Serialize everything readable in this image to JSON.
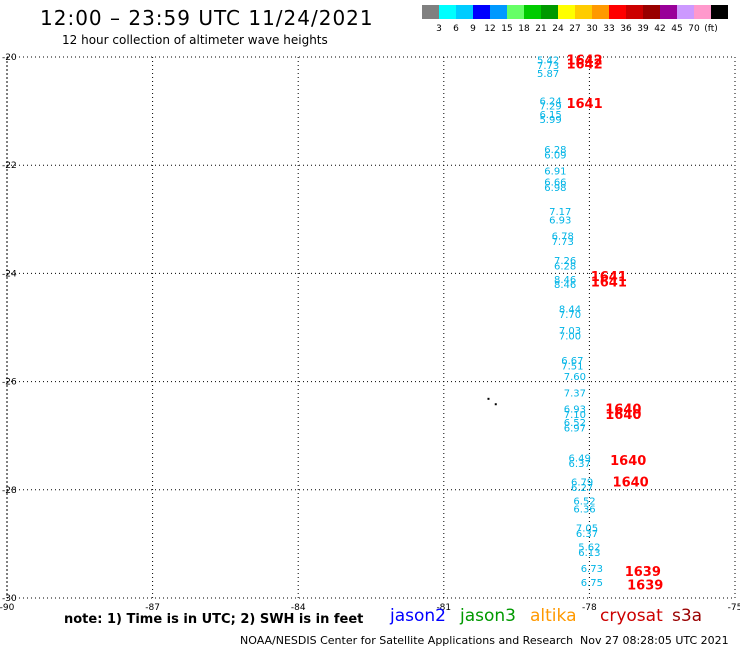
{
  "header": {
    "title": "12:00 – 23:59 UTC 11/24/2021",
    "subtitle": "12 hour collection of altimeter wave heights"
  },
  "colorbar": {
    "colors": [
      "#808080",
      "#00ffff",
      "#00ccff",
      "#0000ff",
      "#0099ff",
      "#66ff66",
      "#00cc00",
      "#009900",
      "#ffff00",
      "#ffcc00",
      "#ff9900",
      "#ff0000",
      "#cc0000",
      "#990000",
      "#990099",
      "#cc99ff",
      "#ff99cc",
      "#000000"
    ],
    "labels": [
      "3",
      "6",
      "9",
      "12",
      "15",
      "18",
      "21",
      "24",
      "27",
      "30",
      "33",
      "36",
      "39",
      "42",
      "45",
      "70",
      "(ft)"
    ]
  },
  "chart_data": {
    "type": "scatter",
    "xlim": [
      -90,
      -75
    ],
    "ylim": [
      -30,
      -20
    ],
    "x_ticks": [
      -90,
      -87,
      -84,
      -81,
      -78,
      -75
    ],
    "y_ticks": [
      -20,
      -22,
      -24,
      -26,
      -28,
      -30
    ],
    "grid": true,
    "swh_labels": [
      {
        "lon": -78.85,
        "lat": -20.05,
        "text": "5.42"
      },
      {
        "lon": -78.85,
        "lat": -20.15,
        "text": "7.73"
      },
      {
        "lon": -78.85,
        "lat": -20.3,
        "text": "5.87"
      },
      {
        "lon": -78.8,
        "lat": -20.8,
        "text": "6.24"
      },
      {
        "lon": -78.8,
        "lat": -20.9,
        "text": "7.29"
      },
      {
        "lon": -78.8,
        "lat": -21.05,
        "text": "6.15"
      },
      {
        "lon": -78.8,
        "lat": -21.15,
        "text": "5.99"
      },
      {
        "lon": -78.7,
        "lat": -21.7,
        "text": "6.28"
      },
      {
        "lon": -78.7,
        "lat": -21.8,
        "text": "6.09"
      },
      {
        "lon": -78.7,
        "lat": -22.1,
        "text": "6.91"
      },
      {
        "lon": -78.7,
        "lat": -22.3,
        "text": "6.66"
      },
      {
        "lon": -78.7,
        "lat": -22.4,
        "text": "6.98"
      },
      {
        "lon": -78.6,
        "lat": -22.85,
        "text": "7.17"
      },
      {
        "lon": -78.6,
        "lat": -23.0,
        "text": "6.93"
      },
      {
        "lon": -78.55,
        "lat": -23.3,
        "text": "6.78"
      },
      {
        "lon": -78.55,
        "lat": -23.4,
        "text": "7.73"
      },
      {
        "lon": -78.5,
        "lat": -23.75,
        "text": "7.26"
      },
      {
        "lon": -78.5,
        "lat": -23.85,
        "text": "6.28"
      },
      {
        "lon": -78.5,
        "lat": -24.1,
        "text": "8.46"
      },
      {
        "lon": -78.5,
        "lat": -24.2,
        "text": "8.46"
      },
      {
        "lon": -78.4,
        "lat": -24.65,
        "text": "8.44"
      },
      {
        "lon": -78.4,
        "lat": -24.75,
        "text": "7.70"
      },
      {
        "lon": -78.4,
        "lat": -25.05,
        "text": "7.03"
      },
      {
        "lon": -78.4,
        "lat": -25.15,
        "text": "7.00"
      },
      {
        "lon": -78.35,
        "lat": -25.6,
        "text": "6.67"
      },
      {
        "lon": -78.35,
        "lat": -25.7,
        "text": "7.51"
      },
      {
        "lon": -78.3,
        "lat": -25.9,
        "text": "7.60"
      },
      {
        "lon": -78.3,
        "lat": -26.2,
        "text": "7.37"
      },
      {
        "lon": -78.3,
        "lat": -26.5,
        "text": "6.93"
      },
      {
        "lon": -78.3,
        "lat": -26.6,
        "text": "7.10"
      },
      {
        "lon": -78.3,
        "lat": -26.75,
        "text": "6.52"
      },
      {
        "lon": -78.3,
        "lat": -26.85,
        "text": "6.97"
      },
      {
        "lon": -78.2,
        "lat": -27.4,
        "text": "6.49"
      },
      {
        "lon": -78.2,
        "lat": -27.5,
        "text": "6.37"
      },
      {
        "lon": -78.15,
        "lat": -27.85,
        "text": "6.79"
      },
      {
        "lon": -78.15,
        "lat": -27.95,
        "text": "6.27"
      },
      {
        "lon": -78.1,
        "lat": -28.2,
        "text": "6.52"
      },
      {
        "lon": -78.1,
        "lat": -28.35,
        "text": "6.36"
      },
      {
        "lon": -78.05,
        "lat": -28.7,
        "text": "7.05"
      },
      {
        "lon": -78.05,
        "lat": -28.8,
        "text": "6.37"
      },
      {
        "lon": -78.0,
        "lat": -29.05,
        "text": "5.62"
      },
      {
        "lon": -78.0,
        "lat": -29.15,
        "text": "6.13"
      },
      {
        "lon": -77.95,
        "lat": -29.45,
        "text": "6.73"
      },
      {
        "lon": -77.95,
        "lat": -29.7,
        "text": "6.75"
      }
    ],
    "time_labels": [
      {
        "lon": -78.1,
        "lat": -20.05,
        "text": "1642"
      },
      {
        "lon": -78.1,
        "lat": -20.12,
        "text": "1642"
      },
      {
        "lon": -78.1,
        "lat": -20.85,
        "text": "1641"
      },
      {
        "lon": -77.6,
        "lat": -24.05,
        "text": "1641"
      },
      {
        "lon": -77.6,
        "lat": -24.15,
        "text": "1641"
      },
      {
        "lon": -77.3,
        "lat": -26.5,
        "text": "1640"
      },
      {
        "lon": -77.3,
        "lat": -26.6,
        "text": "1640"
      },
      {
        "lon": -77.2,
        "lat": -27.45,
        "text": "1640"
      },
      {
        "lon": -77.15,
        "lat": -27.85,
        "text": "1640"
      },
      {
        "lon": -76.9,
        "lat": -29.5,
        "text": "1639"
      },
      {
        "lon": -76.85,
        "lat": -29.75,
        "text": "1639"
      }
    ],
    "land_dots": [
      {
        "lon": -80.1,
        "lat": -26.3
      },
      {
        "lon": -79.95,
        "lat": -26.4
      }
    ]
  },
  "legend": {
    "note": "note: 1) Time is in UTC; 2) SWH is in feet",
    "satellites": {
      "jason2": "jason2",
      "jason3": "jason3",
      "altika": "altika",
      "cryosat": "cryosat",
      "s3a": "s3a"
    }
  },
  "footer": {
    "center": "NOAA/NESDIS Center for Satellite Applications and Research",
    "time": "Nov 27 08:28:05 UTC 2021"
  }
}
